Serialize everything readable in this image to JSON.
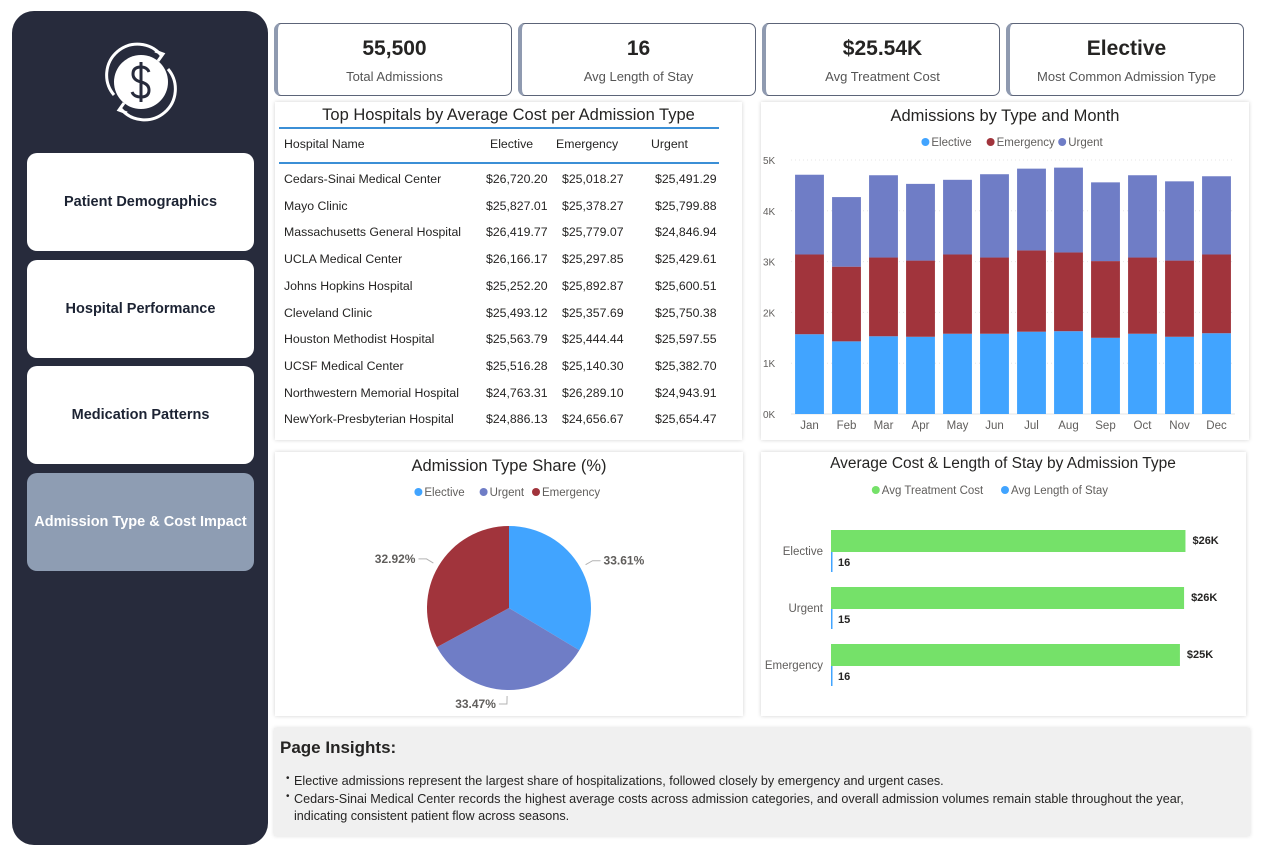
{
  "sidebar": {
    "logo_icon": "dollar-cycle-icon",
    "items": [
      {
        "label": "Patient Demographics",
        "active": false
      },
      {
        "label": "Hospital Performance",
        "active": false
      },
      {
        "label": "Medication Patterns",
        "active": false
      },
      {
        "label": "Admission Type & Cost Impact",
        "active": true
      }
    ]
  },
  "kpis": [
    {
      "value": "55,500",
      "label": "Total Admissions"
    },
    {
      "value": "16",
      "label": "Avg Length of Stay"
    },
    {
      "value": "$25.54K",
      "label": "Avg Treatment Cost"
    },
    {
      "value": "Elective",
      "label": "Most Common Admission Type"
    }
  ],
  "hospital_table": {
    "title": "Top Hospitals by Average Cost per Admission Type",
    "columns": [
      "Hospital Name",
      "Elective",
      "Emergency",
      "Urgent"
    ],
    "rows": [
      [
        "Cedars-Sinai Medical Center",
        "$26,720.20",
        "$25,018.27",
        "$25,491.29"
      ],
      [
        "Mayo Clinic",
        "$25,827.01",
        "$25,378.27",
        "$25,799.88"
      ],
      [
        "Massachusetts General Hospital",
        "$26,419.77",
        "$25,779.07",
        "$24,846.94"
      ],
      [
        "UCLA Medical Center",
        "$26,166.17",
        "$25,297.85",
        "$25,429.61"
      ],
      [
        "Johns Hopkins Hospital",
        "$25,252.20",
        "$25,892.87",
        "$25,600.51"
      ],
      [
        "Cleveland Clinic",
        "$25,493.12",
        "$25,357.69",
        "$25,750.38"
      ],
      [
        "Houston Methodist Hospital",
        "$25,563.79",
        "$25,444.44",
        "$25,597.55"
      ],
      [
        "UCSF Medical Center",
        "$25,516.28",
        "$25,140.30",
        "$25,382.70"
      ],
      [
        "Northwestern Memorial Hospital",
        "$24,763.31",
        "$26,289.10",
        "$24,943.91"
      ],
      [
        "NewYork-Presbyterian Hospital",
        "$24,886.13",
        "$24,656.67",
        "$25,654.47"
      ]
    ]
  },
  "insights": {
    "title": "Page Insights:",
    "items": [
      "Elective admissions represent the largest share of hospitalizations, followed closely by emergency and urgent cases.",
      "Cedars-Sinai Medical Center records the highest average costs across admission categories, and overall admission volumes remain stable throughout the year, indicating consistent patient flow across seasons."
    ]
  },
  "colors": {
    "elective": "#41a4ff",
    "emergency": "#a1343c",
    "urgent": "#6f7dc6",
    "cost_bar": "#75e169",
    "stay_bar": "#41a4ff"
  },
  "chart_data": [
    {
      "type": "bar",
      "stacked": true,
      "title": "Admissions by Type and Month",
      "categories": [
        "Jan",
        "Feb",
        "Mar",
        "Apr",
        "May",
        "Jun",
        "Jul",
        "Aug",
        "Sep",
        "Oct",
        "Nov",
        "Dec"
      ],
      "series": [
        {
          "name": "Elective",
          "color": "#41a4ff",
          "values": [
            1570,
            1430,
            1530,
            1520,
            1580,
            1580,
            1620,
            1630,
            1500,
            1580,
            1520,
            1590
          ]
        },
        {
          "name": "Emergency",
          "color": "#a1343c",
          "values": [
            1570,
            1470,
            1550,
            1500,
            1560,
            1500,
            1600,
            1550,
            1510,
            1500,
            1500,
            1550
          ]
        },
        {
          "name": "Urgent",
          "color": "#6f7dc6",
          "values": [
            1570,
            1370,
            1620,
            1510,
            1470,
            1640,
            1610,
            1670,
            1550,
            1620,
            1560,
            1540
          ]
        }
      ],
      "yticks": [
        "0K",
        "1K",
        "2K",
        "3K",
        "4K",
        "5K"
      ],
      "ylim": [
        0,
        5000
      ],
      "legend": "top-center"
    },
    {
      "type": "pie",
      "title": "Admission Type Share (%)",
      "labels": [
        "Elective",
        "Urgent",
        "Emergency"
      ],
      "values": [
        33.61,
        33.47,
        32.92
      ],
      "value_labels": [
        "33.61%",
        "33.47%",
        "32.92%"
      ],
      "colors": [
        "#41a4ff",
        "#6f7dc6",
        "#a1343c"
      ],
      "legend": "top-center"
    },
    {
      "type": "bar",
      "orientation": "horizontal",
      "title": "Average Cost & Length of Stay by Admission Type",
      "categories": [
        "Elective",
        "Urgent",
        "Emergency"
      ],
      "series": [
        {
          "name": "Avg Treatment Cost",
          "color": "#75e169",
          "values": [
            25600,
            25500,
            25200
          ],
          "labels": [
            "$26K",
            "$26K",
            "$25K"
          ]
        },
        {
          "name": "Avg Length of Stay",
          "color": "#41a4ff",
          "values": [
            16,
            15,
            16
          ],
          "labels": [
            "16",
            "15",
            "16"
          ]
        }
      ],
      "legend": "top-center"
    }
  ]
}
